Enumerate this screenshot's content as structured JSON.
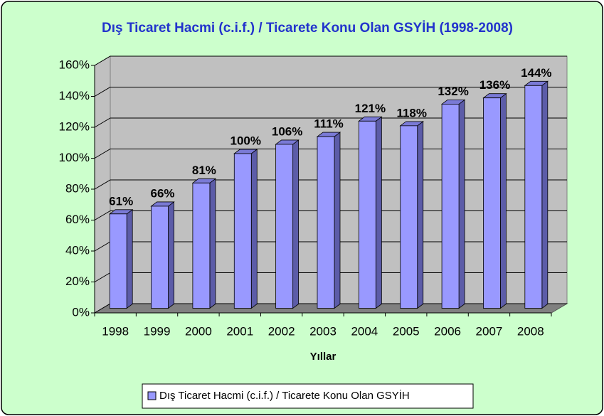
{
  "chart_data": {
    "type": "bar3d",
    "title": "Dış Ticaret Hacmi (c.i.f.) / Ticarete Konu Olan GSYİH (1998-2008)",
    "x_label": "Yıllar",
    "categories": [
      "1998",
      "1999",
      "2000",
      "2001",
      "2002",
      "2003",
      "2004",
      "2005",
      "2006",
      "2007",
      "2008"
    ],
    "series": [
      {
        "name": "Dış Ticaret Hacmi (c.i.f.) / Ticarete Konu Olan GSYİH",
        "color": "#9999ff",
        "values": [
          61,
          66,
          81,
          100,
          106,
          111,
          121,
          118,
          132,
          136,
          144
        ],
        "value_labels": [
          "61%",
          "66%",
          "81%",
          "100%",
          "106%",
          "111%",
          "121%",
          "118%",
          "132%",
          "136%",
          "144%"
        ]
      }
    ],
    "ylim": [
      0,
      160
    ],
    "yticks": [
      {
        "value": 0,
        "label": "0%"
      },
      {
        "value": 20,
        "label": "20%"
      },
      {
        "value": 40,
        "label": "40%"
      },
      {
        "value": 60,
        "label": "60%"
      },
      {
        "value": 80,
        "label": "80%"
      },
      {
        "value": 100,
        "label": "100%"
      },
      {
        "value": 120,
        "label": "120%"
      },
      {
        "value": 140,
        "label": "140%"
      },
      {
        "value": 160,
        "label": "160%"
      }
    ],
    "grid": true,
    "legend": "bottom"
  }
}
